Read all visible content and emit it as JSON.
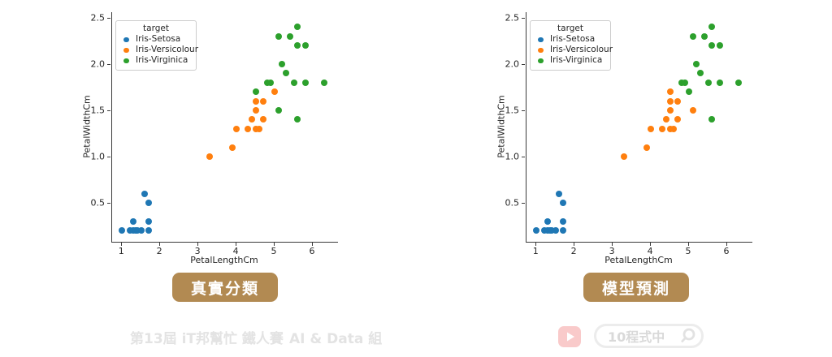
{
  "axes": {
    "xlabel": "PetalLengthCm",
    "ylabel": "PetalWidthCm",
    "legend_title": "target",
    "xticks": [
      "1",
      "2",
      "3",
      "4",
      "5",
      "6"
    ],
    "yticks": [
      "0.5",
      "1.0",
      "1.5",
      "2.0",
      "2.5"
    ],
    "xlim": [
      0.74,
      6.66
    ],
    "ylim": [
      0.08,
      2.56
    ],
    "grid": false,
    "legend_position": "upper-left"
  },
  "chart_data": [
    {
      "type": "scatter",
      "title": "真實分類",
      "xlabel": "PetalLengthCm",
      "ylabel": "PetalWidthCm",
      "legend_title": "target",
      "series": [
        {
          "name": "Iris-Setosa",
          "color": "#1f77b4",
          "points": [
            [
              1.0,
              0.2
            ],
            [
              1.2,
              0.2
            ],
            [
              1.3,
              0.2
            ],
            [
              1.35,
              0.2
            ],
            [
              1.4,
              0.2
            ],
            [
              1.5,
              0.2
            ],
            [
              1.7,
              0.2
            ],
            [
              1.3,
              0.3
            ],
            [
              1.7,
              0.3
            ],
            [
              1.7,
              0.5
            ],
            [
              1.6,
              0.6
            ]
          ]
        },
        {
          "name": "Iris-Versicolour",
          "color": "#ff7f0e",
          "points": [
            [
              3.3,
              1.0
            ],
            [
              3.9,
              1.1
            ],
            [
              4.0,
              1.3
            ],
            [
              4.3,
              1.3
            ],
            [
              4.5,
              1.3
            ],
            [
              4.6,
              1.3
            ],
            [
              4.4,
              1.4
            ],
            [
              4.7,
              1.4
            ],
            [
              4.5,
              1.5
            ],
            [
              4.5,
              1.6
            ],
            [
              4.7,
              1.6
            ],
            [
              5.0,
              1.7
            ]
          ]
        },
        {
          "name": "Iris-Virginica",
          "color": "#2ca02c",
          "points": [
            [
              5.6,
              1.4
            ],
            [
              5.1,
              1.5
            ],
            [
              4.5,
              1.7
            ],
            [
              4.8,
              1.8
            ],
            [
              4.9,
              1.8
            ],
            [
              5.5,
              1.8
            ],
            [
              5.8,
              1.8
            ],
            [
              6.3,
              1.8
            ],
            [
              5.3,
              1.9
            ],
            [
              5.2,
              2.0
            ],
            [
              5.6,
              2.2
            ],
            [
              5.8,
              2.2
            ],
            [
              5.1,
              2.3
            ],
            [
              5.4,
              2.3
            ],
            [
              5.6,
              2.4
            ]
          ]
        }
      ]
    },
    {
      "type": "scatter",
      "title": "模型預測",
      "xlabel": "PetalLengthCm",
      "ylabel": "PetalWidthCm",
      "legend_title": "target",
      "series": [
        {
          "name": "Iris-Setosa",
          "color": "#1f77b4",
          "points": [
            [
              1.0,
              0.2
            ],
            [
              1.2,
              0.2
            ],
            [
              1.3,
              0.2
            ],
            [
              1.35,
              0.2
            ],
            [
              1.4,
              0.2
            ],
            [
              1.5,
              0.2
            ],
            [
              1.7,
              0.2
            ],
            [
              1.3,
              0.3
            ],
            [
              1.7,
              0.3
            ],
            [
              1.7,
              0.5
            ],
            [
              1.6,
              0.6
            ]
          ]
        },
        {
          "name": "Iris-Versicolour",
          "color": "#ff7f0e",
          "points": [
            [
              3.3,
              1.0
            ],
            [
              3.9,
              1.1
            ],
            [
              4.0,
              1.3
            ],
            [
              4.3,
              1.3
            ],
            [
              4.5,
              1.3
            ],
            [
              4.6,
              1.3
            ],
            [
              4.4,
              1.4
            ],
            [
              4.7,
              1.4
            ],
            [
              4.5,
              1.5
            ],
            [
              5.1,
              1.5
            ],
            [
              4.5,
              1.6
            ],
            [
              4.7,
              1.6
            ],
            [
              4.5,
              1.7
            ]
          ]
        },
        {
          "name": "Iris-Virginica",
          "color": "#2ca02c",
          "points": [
            [
              5.6,
              1.4
            ],
            [
              5.0,
              1.7
            ],
            [
              4.8,
              1.8
            ],
            [
              4.9,
              1.8
            ],
            [
              5.5,
              1.8
            ],
            [
              5.8,
              1.8
            ],
            [
              6.3,
              1.8
            ],
            [
              5.3,
              1.9
            ],
            [
              5.2,
              2.0
            ],
            [
              5.6,
              2.2
            ],
            [
              5.8,
              2.2
            ],
            [
              5.1,
              2.3
            ],
            [
              5.4,
              2.3
            ],
            [
              5.6,
              2.4
            ]
          ]
        }
      ]
    }
  ],
  "captions": {
    "left": "真實分類",
    "right": "模型預測"
  },
  "footer": {
    "watermark_contest": "第13屆 iT邦幫忙 鐵人賽",
    "watermark_group": "AI & Data 組",
    "search_text": "10程式中"
  },
  "icons": {
    "play": "youtube-play-icon",
    "search": "magnifier-icon"
  },
  "colors": {
    "setosa": "#1f77b4",
    "versicolour": "#ff7f0e",
    "virginica": "#2ca02c",
    "button_bg": "#b28a52",
    "button_text": "#ffffff",
    "watermark": "#e3e3e3",
    "play_button": "#f9caca",
    "search_border": "#ececec",
    "search_text": "#d9d9d9"
  }
}
